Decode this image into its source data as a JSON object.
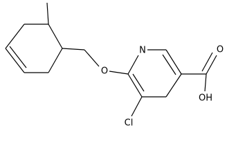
{
  "atoms": [
    {
      "label": "N"
    },
    {
      "label": "O"
    },
    {
      "label": "Cl"
    },
    {
      "label": "O"
    },
    {
      "label": "OH"
    }
  ]
}
